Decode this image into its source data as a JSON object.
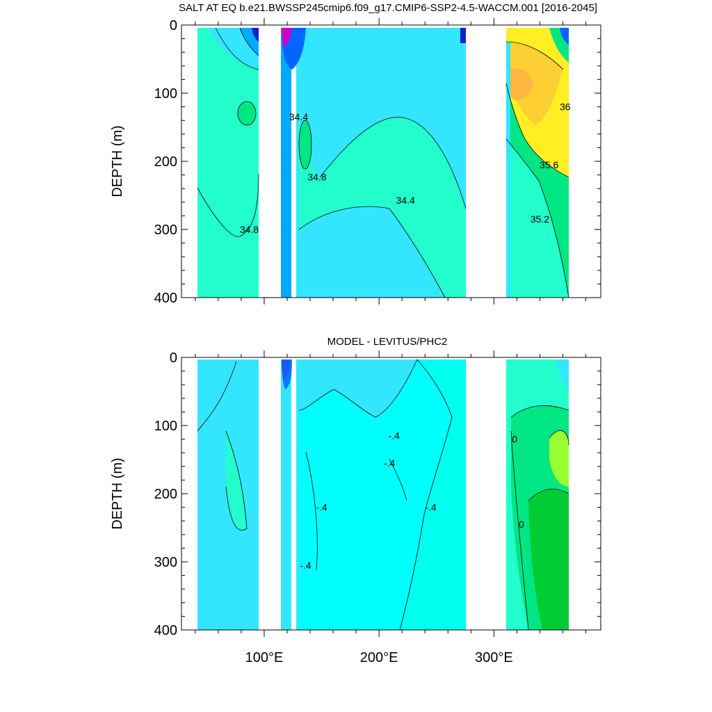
{
  "chart_data": [
    {
      "type": "heatmap",
      "title": "SALT AT EQ b.e21.BWSSP245cmip6.f09_g17.CMIP6-SSP2-4.5-WACCM.001 [2016-2045]",
      "xlabel": "",
      "ylabel": "DEPTH (m)",
      "xlim": [
        28,
        393
      ],
      "ylim": [
        400,
        0
      ],
      "y_ticks": [
        "0",
        "100",
        "200",
        "300",
        "400"
      ],
      "x_ticks": [],
      "colors": {
        "s344": "#33e6ff",
        "s348": "#22ffcc",
        "s352": "#00e683",
        "s356": "#ffee22",
        "s360": "#ffd033",
        "s364": "#ffb640",
        "fresh": "#00aaff",
        "fresher": "#0066ff",
        "freshest": "#1122cc",
        "extreme": "#cc00cc"
      },
      "contour_labels": [
        {
          "text": "34.4",
          "x": 130,
          "y": 140
        },
        {
          "text": "34.8",
          "x": 146,
          "y": 228
        },
        {
          "text": "34.4",
          "x": 223,
          "y": 262
        },
        {
          "text": "34.8",
          "x": 87,
          "y": 305
        },
        {
          "text": "36",
          "x": 362,
          "y": 125
        },
        {
          "text": "35.6",
          "x": 348,
          "y": 210
        },
        {
          "text": "35.2",
          "x": 340,
          "y": 290
        }
      ]
    },
    {
      "type": "heatmap",
      "title": "MODEL - LEVITUS/PHC2",
      "xlabel": "",
      "ylabel": "DEPTH (m)",
      "xlim": [
        28,
        393
      ],
      "ylim": [
        400,
        0
      ],
      "y_ticks": [
        "0",
        "100",
        "200",
        "300",
        "400"
      ],
      "x_ticks": [
        "100°E",
        "200°E",
        "300°E"
      ],
      "x_tick_values": [
        100,
        200,
        300
      ],
      "colors": {
        "d_m06": "#00ffff",
        "d_m04": "#33e6ff",
        "d_m02": "#00ffee",
        "d_0": "#22ffcc",
        "d_p02": "#00e683",
        "d_p04": "#00cc33",
        "d_p06": "#99ff33",
        "d_neg_strong": "#0066ff",
        "d_extreme": "#cc00cc"
      },
      "contour_labels": [
        {
          "text": "-.4",
          "x": 213,
          "y": 120
        },
        {
          "text": "-.4",
          "x": 209,
          "y": 160
        },
        {
          "text": "-.4",
          "x": 150,
          "y": 225
        },
        {
          "text": "-.4",
          "x": 245,
          "y": 225
        },
        {
          "text": "-.4",
          "x": 136,
          "y": 310
        },
        {
          "text": "0",
          "x": 318,
          "y": 125
        },
        {
          "text": "0",
          "x": 324,
          "y": 250
        }
      ]
    }
  ]
}
